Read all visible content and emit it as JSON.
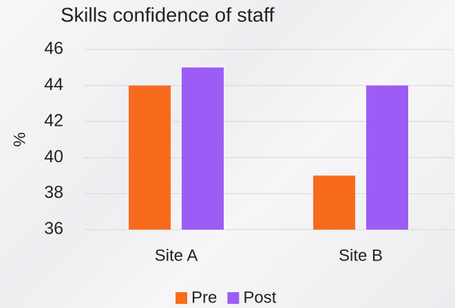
{
  "chart_data": {
    "type": "bar",
    "title": "Skills confidence of staff",
    "y_label": "%",
    "categories": [
      "Site A",
      "Site B"
    ],
    "series": [
      {
        "name": "Pre",
        "color": "#f96b1c",
        "values": [
          44,
          39
        ]
      },
      {
        "name": "Post",
        "color": "#9c5cf5",
        "values": [
          45,
          44
        ]
      }
    ],
    "ylim": [
      36,
      46
    ],
    "yticks": [
      36,
      38,
      40,
      42,
      44,
      46
    ],
    "grid": true,
    "legend": "bottom"
  }
}
